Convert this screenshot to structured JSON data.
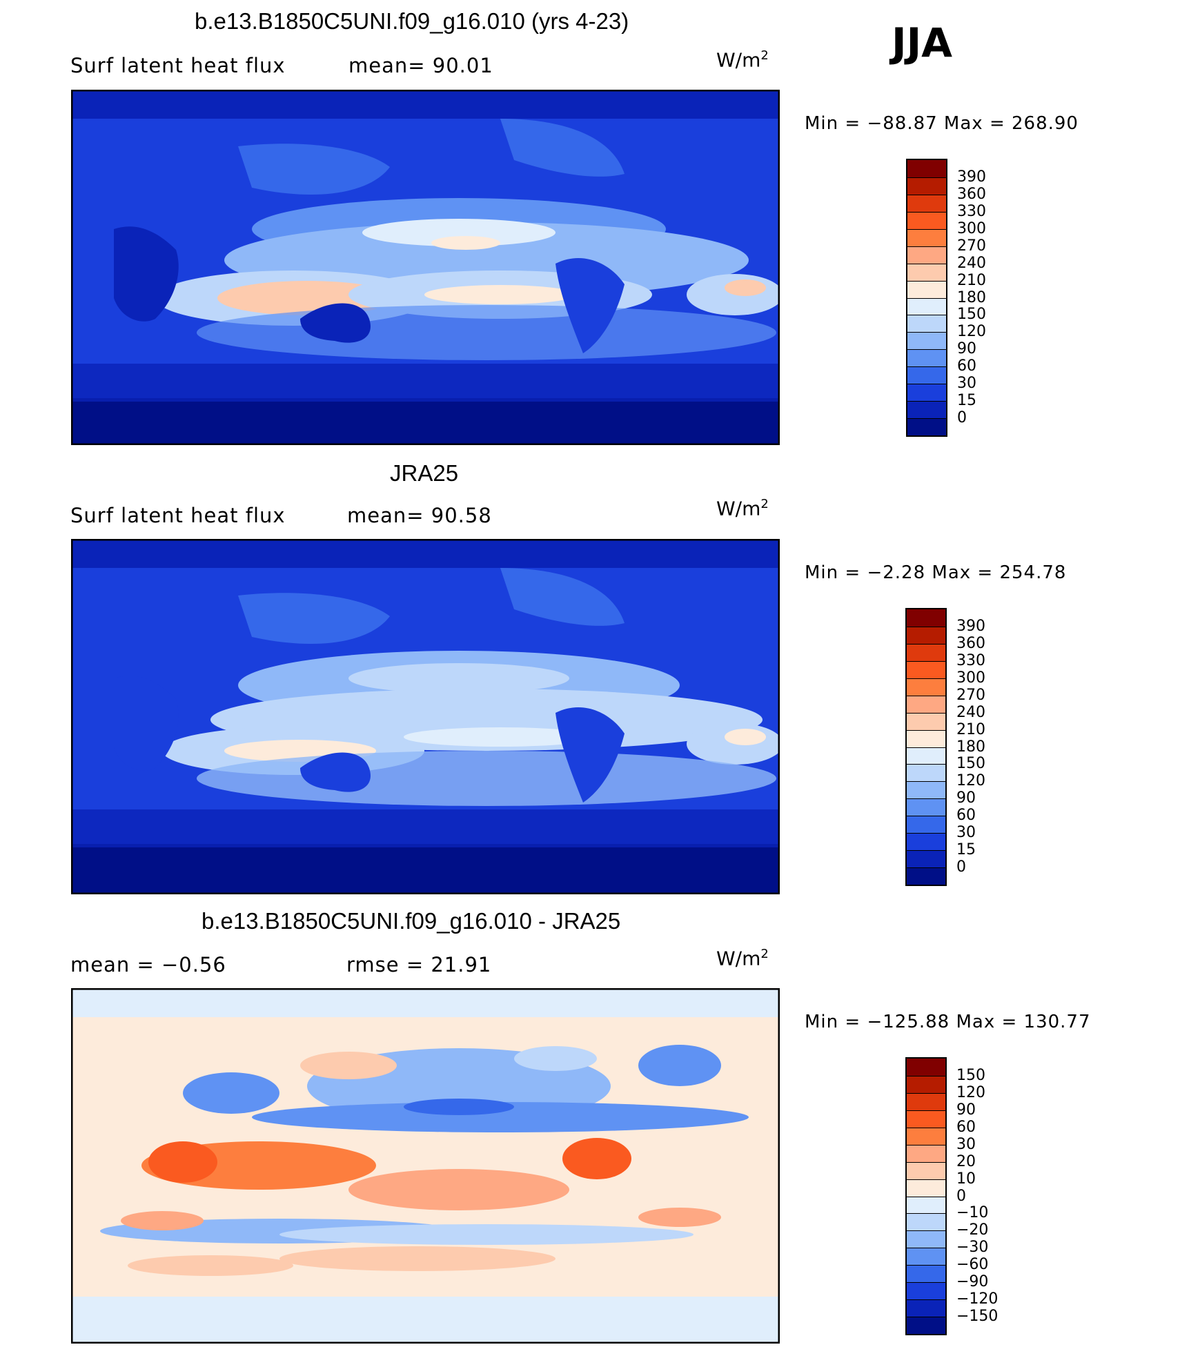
{
  "season": "JJA",
  "units_text": "W/m",
  "units_exp": "2",
  "panels": [
    {
      "title": "b.e13.B1850C5UNI.f09_g16.010 (yrs 4-23)",
      "left_label": "Surf  latent  heat  flux",
      "mid_label": "mean=   90.01",
      "minmax": "Min  =  −88.87  Max  =  268.90"
    },
    {
      "title": "JRA25",
      "left_label": "Surf  latent  heat  flux",
      "mid_label": "mean=   90.58",
      "minmax": "Min  =    −2.28  Max  =  254.78"
    },
    {
      "title": "b.e13.B1850C5UNI.f09_g16.010 - JRA25",
      "left_label": "mean  =    −0.56",
      "mid_label": "rmse  =    21.91",
      "minmax": "Min  =  −125.88  Max  =  130.77"
    }
  ],
  "colorbar_abs": {
    "labels": [
      "390",
      "360",
      "330",
      "300",
      "270",
      "240",
      "210",
      "180",
      "150",
      "120",
      "90",
      "60",
      "30",
      "15",
      "0"
    ],
    "colors": [
      "#800000",
      "#b51c00",
      "#df3a0d",
      "#fa5a20",
      "#fd7e3e",
      "#fea883",
      "#fdcbae",
      "#fdebdb",
      "#e0eefc",
      "#bdd7fa",
      "#8fb8f8",
      "#5f92f3",
      "#3568ea",
      "#1a3fdc",
      "#0a23b8",
      "#000f87"
    ]
  },
  "colorbar_diff": {
    "labels": [
      "150",
      "120",
      "90",
      "60",
      "30",
      "20",
      "10",
      "0",
      "−10",
      "−20",
      "−30",
      "−60",
      "−90",
      "−120",
      "−150"
    ],
    "colors": [
      "#800000",
      "#b51c00",
      "#df3a0d",
      "#fa5a20",
      "#fd7e3e",
      "#fea883",
      "#fdcbae",
      "#fdebdb",
      "#e0eefc",
      "#bdd7fa",
      "#8fb8f8",
      "#5f92f3",
      "#3568ea",
      "#1a3fdc",
      "#0a23b8",
      "#000f87"
    ]
  },
  "chart_data": [
    {
      "type": "heatmap",
      "title": "b.e13.B1850C5UNI.f09_g16.010 (yrs 4-23)",
      "subtitle": "Surf latent heat flux",
      "units": "W/m2",
      "mean": 90.01,
      "min": -88.87,
      "max": 268.9,
      "contour_levels": [
        0,
        15,
        30,
        60,
        90,
        120,
        150,
        180,
        210,
        240,
        270,
        300,
        330,
        360,
        390
      ]
    },
    {
      "type": "heatmap",
      "title": "JRA25",
      "subtitle": "Surf latent heat flux",
      "units": "W/m2",
      "mean": 90.58,
      "min": -2.28,
      "max": 254.78,
      "contour_levels": [
        0,
        15,
        30,
        60,
        90,
        120,
        150,
        180,
        210,
        240,
        270,
        300,
        330,
        360,
        390
      ]
    },
    {
      "type": "heatmap",
      "title": "b.e13.B1850C5UNI.f09_g16.010 - JRA25",
      "units": "W/m2",
      "mean": -0.56,
      "rmse": 21.91,
      "min": -125.88,
      "max": 130.77,
      "contour_levels": [
        -150,
        -120,
        -90,
        -60,
        -30,
        -20,
        -10,
        0,
        10,
        20,
        30,
        60,
        90,
        120,
        150
      ]
    }
  ]
}
